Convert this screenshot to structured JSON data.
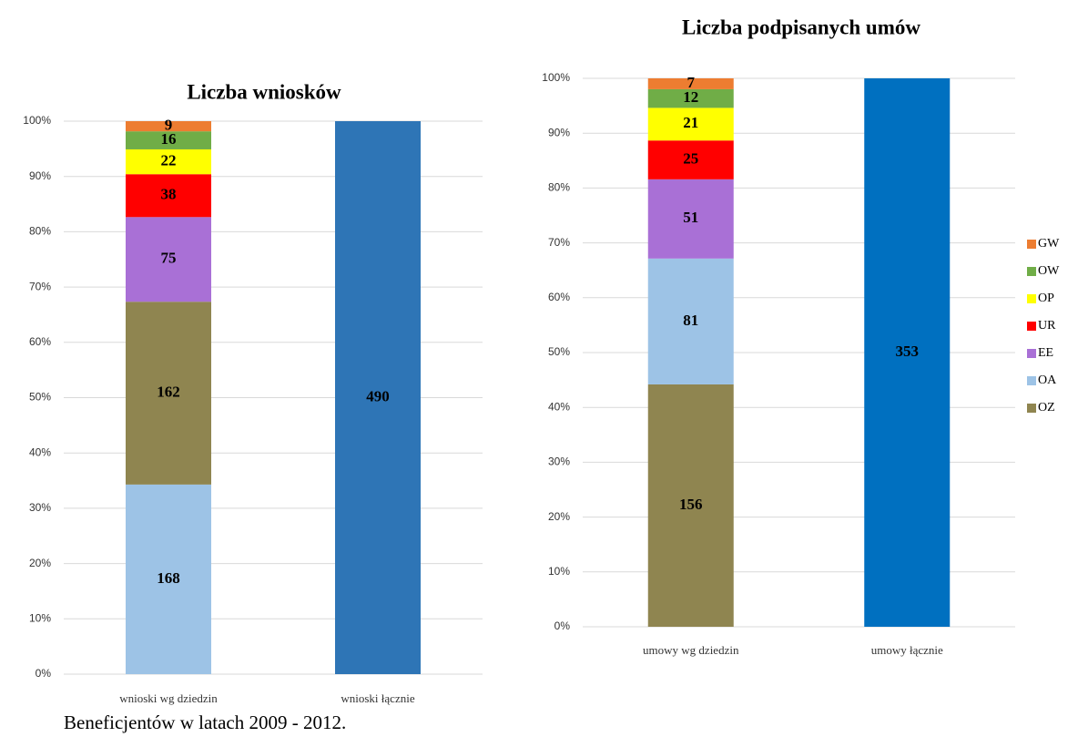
{
  "chart_data": [
    {
      "type": "stacked_percent_bar",
      "title": "Liczba wniosków",
      "categories": [
        "wnioski wg dziedzin",
        "wnioski łącznie"
      ],
      "series": [
        {
          "color": "#9dc3e6",
          "values": [
            168,
            null
          ]
        },
        {
          "color": "#8f8550",
          "values": [
            162,
            null
          ]
        },
        {
          "color": "#a970d6",
          "values": [
            75,
            null
          ]
        },
        {
          "color": "#ff0000",
          "values": [
            38,
            null
          ]
        },
        {
          "color": "#ffff00",
          "values": [
            22,
            null
          ]
        },
        {
          "color": "#70ad47",
          "values": [
            16,
            null
          ]
        },
        {
          "color": "#ed7d31",
          "values": [
            9,
            null
          ]
        },
        {
          "color": "#2e75b6",
          "values": [
            null,
            490
          ]
        }
      ],
      "ylim": [
        0,
        100
      ],
      "yticks": [
        {
          "value": 0,
          "label": "0%"
        },
        {
          "value": 10,
          "label": "10%"
        },
        {
          "value": 20,
          "label": "20%"
        },
        {
          "value": 30,
          "label": "30%"
        },
        {
          "value": 40,
          "label": "40%"
        },
        {
          "value": 50,
          "label": "50%"
        },
        {
          "value": 60,
          "label": "60%"
        },
        {
          "value": 70,
          "label": "70%"
        },
        {
          "value": 80,
          "label": "80%"
        },
        {
          "value": 90,
          "label": "90%"
        },
        {
          "value": 100,
          "label": "100%"
        }
      ],
      "grid": true
    },
    {
      "type": "stacked_percent_bar",
      "title": "Liczba podpisanych umów",
      "categories": [
        "umowy wg dziedzin",
        "umowy łącznie"
      ],
      "series": [
        {
          "name": "OZ",
          "color": "#8f8550",
          "values": [
            156,
            null
          ]
        },
        {
          "name": "OA",
          "color": "#9dc3e6",
          "values": [
            81,
            null
          ]
        },
        {
          "name": "EE",
          "color": "#a970d6",
          "values": [
            51,
            null
          ]
        },
        {
          "name": "UR",
          "color": "#ff0000",
          "values": [
            25,
            null
          ]
        },
        {
          "name": "OP",
          "color": "#ffff00",
          "values": [
            21,
            null
          ]
        },
        {
          "name": "OW",
          "color": "#70ad47",
          "values": [
            12,
            null
          ]
        },
        {
          "name": "GW",
          "color": "#ed7d31",
          "values": [
            7,
            null
          ]
        },
        {
          "color": "#0070c0",
          "values": [
            null,
            353
          ]
        }
      ],
      "ylim": [
        0,
        100
      ],
      "yticks": [
        {
          "value": 0,
          "label": "0%"
        },
        {
          "value": 10,
          "label": "10%"
        },
        {
          "value": 20,
          "label": "20%"
        },
        {
          "value": 30,
          "label": "30%"
        },
        {
          "value": 40,
          "label": "40%"
        },
        {
          "value": 50,
          "label": "50%"
        },
        {
          "value": 60,
          "label": "60%"
        },
        {
          "value": 70,
          "label": "70%"
        },
        {
          "value": 80,
          "label": "80%"
        },
        {
          "value": 90,
          "label": "90%"
        },
        {
          "value": 100,
          "label": "100%"
        }
      ],
      "grid": true,
      "legend": "right"
    }
  ],
  "caption": "Beneficjentów w latach 2009 - 2012."
}
